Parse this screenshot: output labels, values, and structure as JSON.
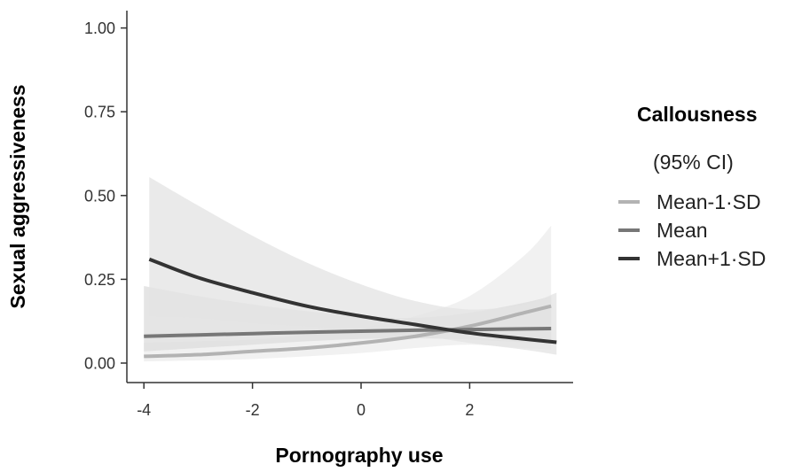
{
  "chart_data": {
    "type": "line",
    "xlabel": "Pornography use",
    "ylabel": "Sexual aggressiveness",
    "xlim": [
      -4.3,
      4.0
    ],
    "ylim": [
      -0.05,
      1.05
    ],
    "x_ticks": [
      -4,
      -2,
      0,
      2
    ],
    "x_tick_labels": [
      "-4",
      "-2",
      "0",
      "2"
    ],
    "y_ticks": [
      0.0,
      0.25,
      0.5,
      0.75,
      1.0
    ],
    "y_tick_labels": [
      "0.00",
      "0.25",
      "0.50",
      "0.75",
      "1.00"
    ],
    "grid": false,
    "legend": {
      "title": "Callousness",
      "subtitle": "(95% CI)",
      "position": "right"
    },
    "series": [
      {
        "name": "Mean-1·SD",
        "color": "#b3b3b3",
        "band_color": "#ececec",
        "x": [
          -4.0,
          -3.0,
          -2.0,
          -1.0,
          0.0,
          1.0,
          2.0,
          3.0,
          3.5
        ],
        "y": [
          0.02,
          0.025,
          0.035,
          0.045,
          0.06,
          0.08,
          0.11,
          0.15,
          0.17
        ],
        "lower": [
          0.005,
          0.008,
          0.012,
          0.02,
          0.03,
          0.045,
          0.055,
          0.045,
          0.04
        ],
        "upper": [
          0.06,
          0.065,
          0.07,
          0.085,
          0.105,
          0.14,
          0.2,
          0.32,
          0.41
        ]
      },
      {
        "name": "Mean",
        "color": "#777777",
        "band_color": "#dcdcdc",
        "x": [
          -4.0,
          -3.0,
          -2.0,
          -1.0,
          0.0,
          1.0,
          2.0,
          3.0,
          3.5
        ],
        "y": [
          0.08,
          0.084,
          0.088,
          0.092,
          0.095,
          0.098,
          0.1,
          0.102,
          0.103
        ],
        "lower": [
          0.035,
          0.045,
          0.055,
          0.065,
          0.072,
          0.074,
          0.07,
          0.062,
          0.055
        ],
        "upper": [
          0.23,
          0.2,
          0.175,
          0.155,
          0.14,
          0.135,
          0.15,
          0.18,
          0.2
        ]
      },
      {
        "name": "Mean+1·SD",
        "color": "#333333",
        "band_color": "#e3e3e3",
        "x": [
          -3.9,
          -3.0,
          -2.0,
          -1.0,
          0.0,
          1.0,
          2.0,
          3.0,
          3.6
        ],
        "y": [
          0.31,
          0.255,
          0.21,
          0.17,
          0.14,
          0.115,
          0.09,
          0.072,
          0.062
        ],
        "lower": [
          0.14,
          0.135,
          0.12,
          0.11,
          0.1,
          0.085,
          0.06,
          0.04,
          0.025
        ],
        "upper": [
          0.555,
          0.47,
          0.38,
          0.3,
          0.235,
          0.185,
          0.16,
          0.175,
          0.21
        ]
      }
    ]
  }
}
